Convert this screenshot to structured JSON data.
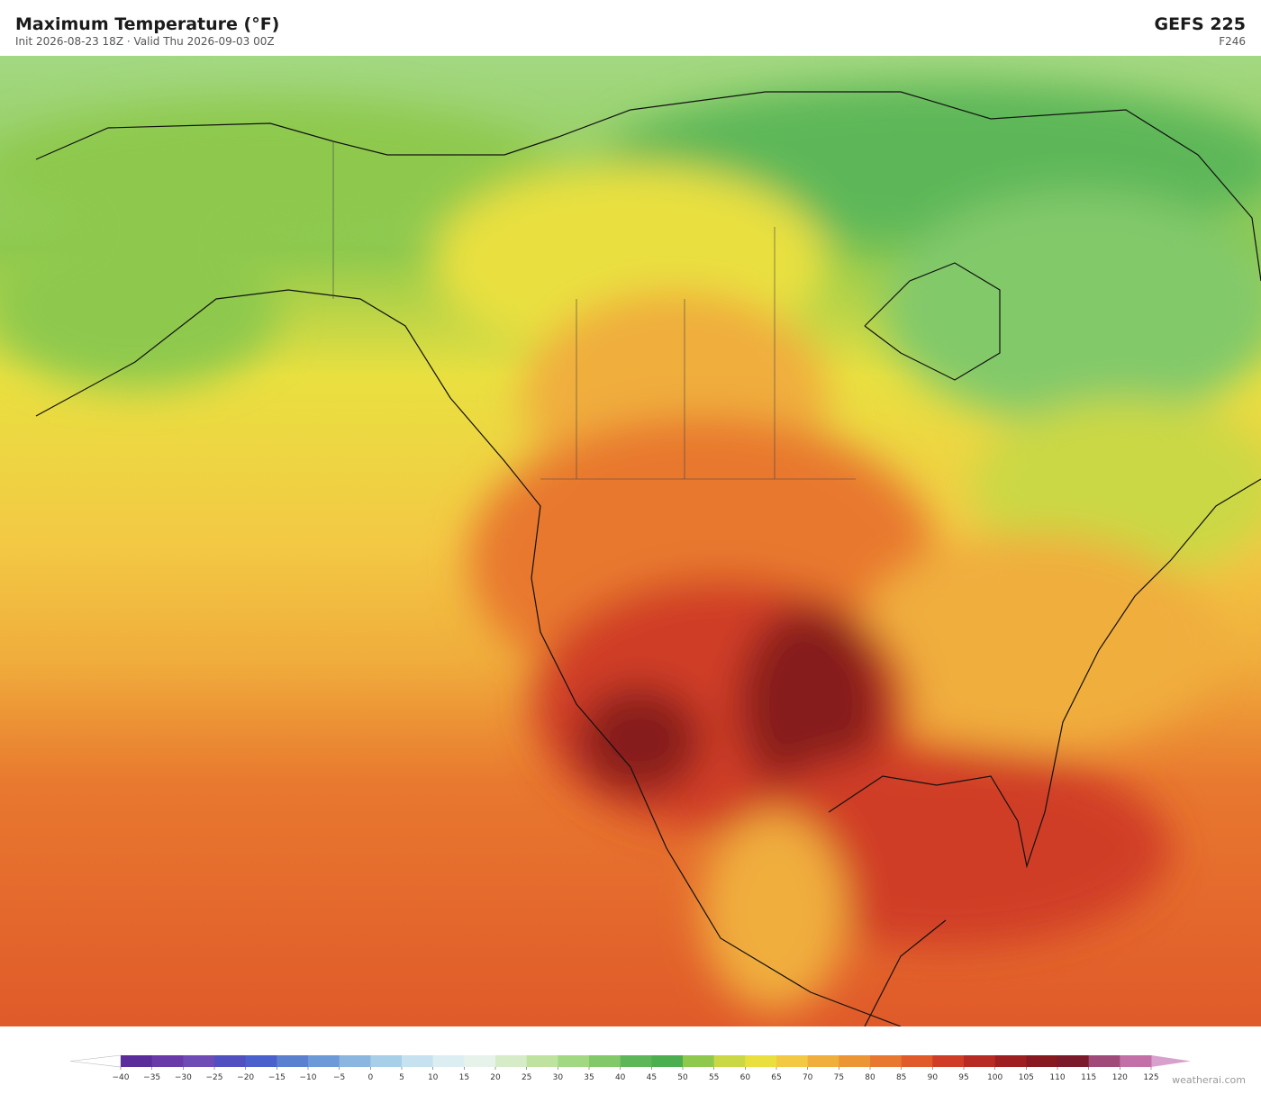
{
  "header": {
    "title": "Maximum Temperature  (°F)",
    "subtitle": "Init 2026-08-23 18Z  ·  Valid Thu 2026-09-03 00Z",
    "model": "GEFS  225",
    "forecast_hour": "F246"
  },
  "colorbar": {
    "ticks": [
      {
        "value": -40,
        "label": "−40"
      },
      {
        "value": -35,
        "label": "−35"
      },
      {
        "value": -30,
        "label": "−30"
      },
      {
        "value": -25,
        "label": "−25"
      },
      {
        "value": -20,
        "label": "−20"
      },
      {
        "value": -15,
        "label": "−15"
      },
      {
        "value": -10,
        "label": "−10"
      },
      {
        "value": -5,
        "label": "−5"
      },
      0,
      5,
      10,
      15,
      20,
      25,
      30,
      35,
      40,
      45,
      50,
      55,
      60,
      65,
      70,
      75,
      80,
      85,
      90,
      95,
      100,
      105,
      110,
      115,
      120,
      125
    ],
    "colors": [
      "#5b2d9a",
      "#6a3aa8",
      "#6f4bb5",
      "#5050c0",
      "#4a60cc",
      "#5b80d0",
      "#6c9ad8",
      "#8ab6e0",
      "#a8cfe8",
      "#c6e2f0",
      "#ddeef3",
      "#e6f2ea",
      "#d6ecc8",
      "#bfe2a0",
      "#a3d882",
      "#82c96a",
      "#5db758",
      "#4caf4f",
      "#8ec94e",
      "#cbd845",
      "#e9e040",
      "#f3c944",
      "#f0ae3c",
      "#ec9535",
      "#e8782f",
      "#e05a2a",
      "#d03d26",
      "#b82a24",
      "#9e1f22",
      "#861a1f",
      "#7a1a2a",
      "#a04a7a",
      "#c470a8"
    ],
    "under_color": "#ffffff",
    "over_color": "#d8a0cc"
  },
  "credit": "weatherai.com"
}
